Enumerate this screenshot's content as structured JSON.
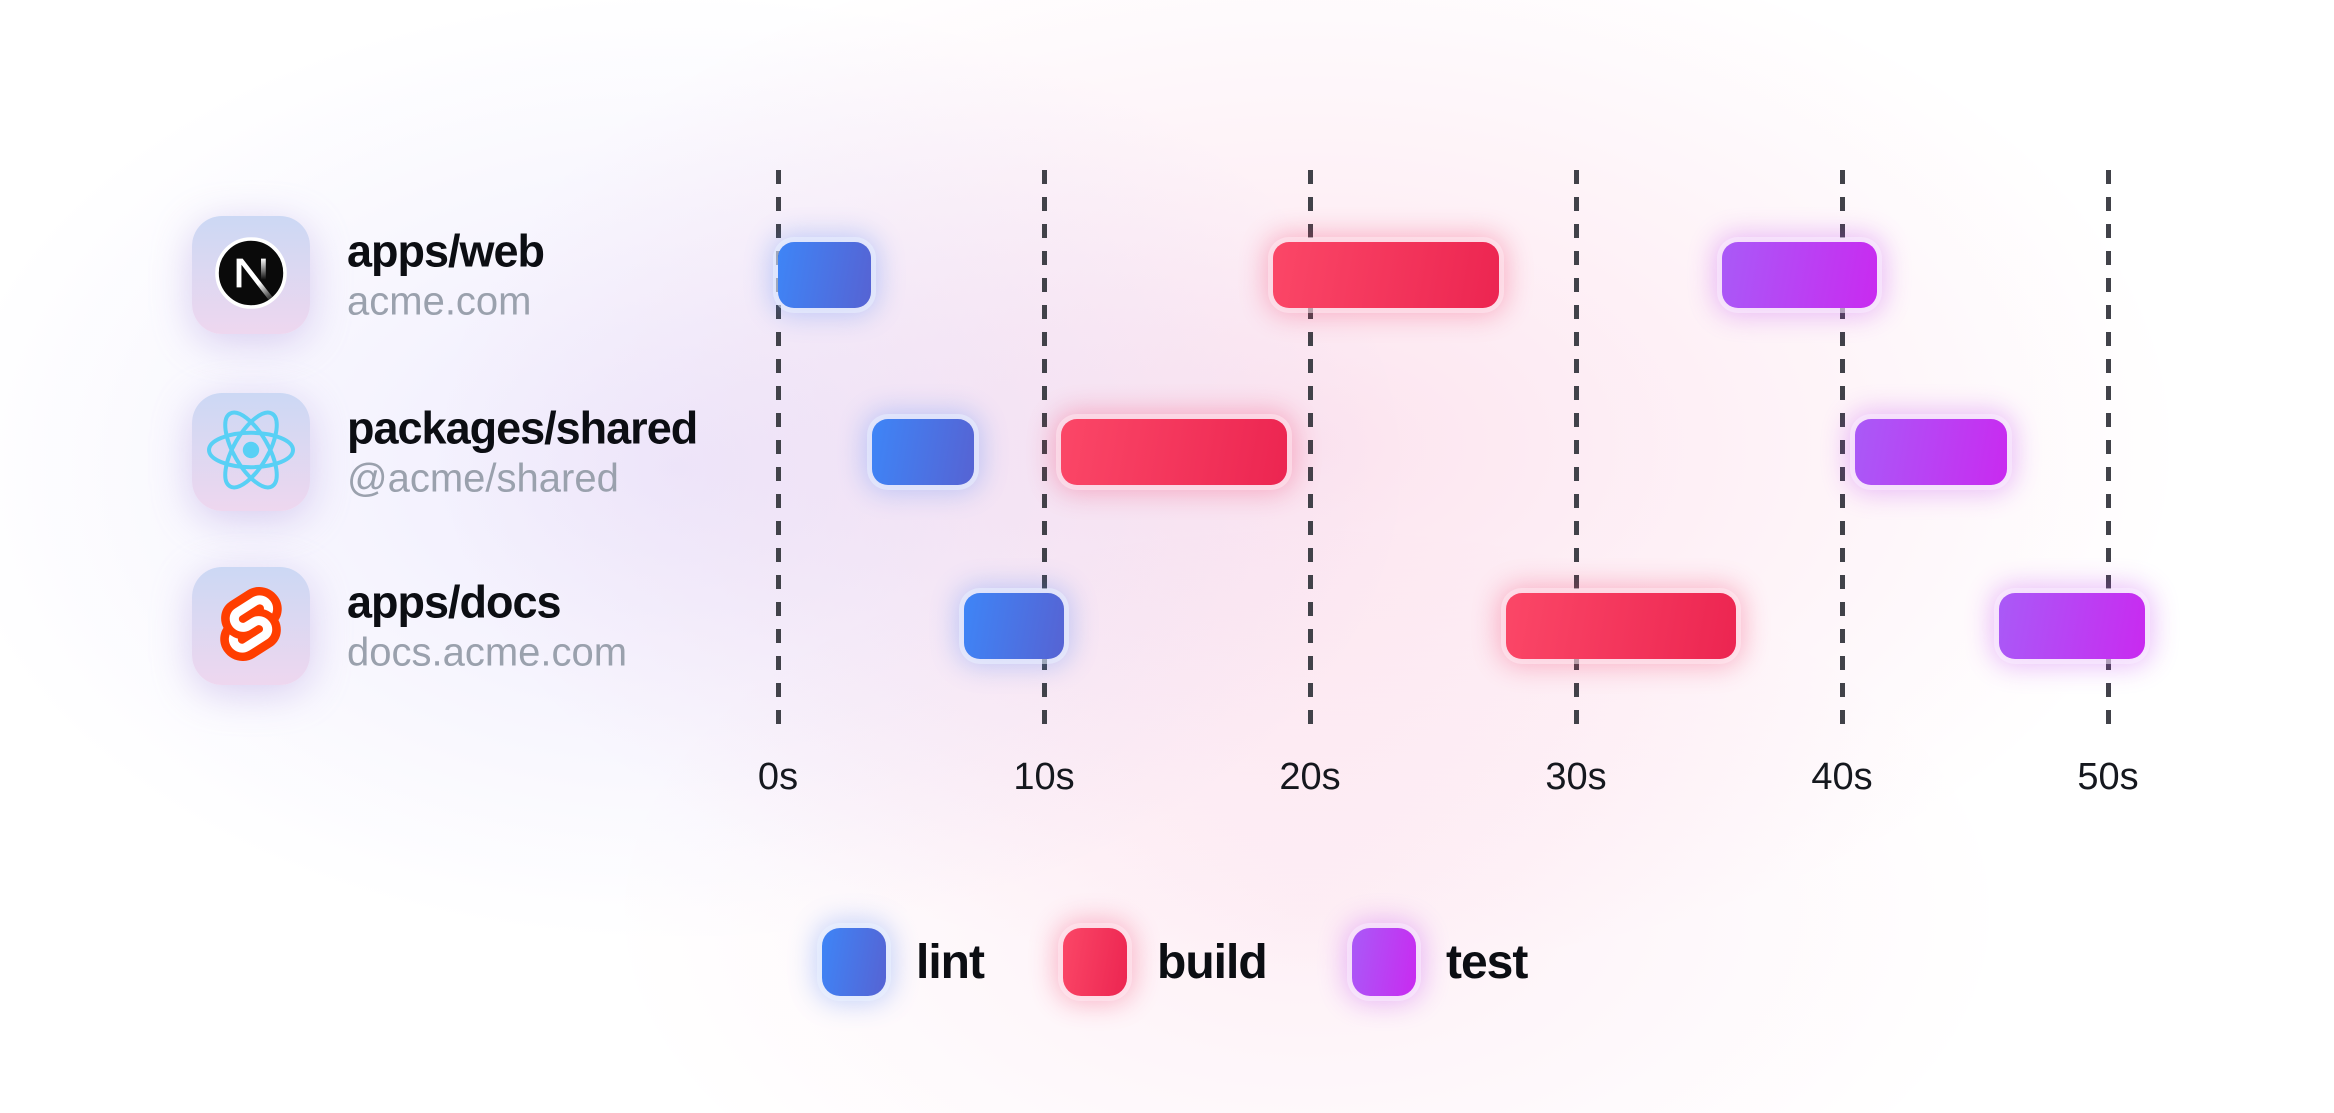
{
  "chart_data": {
    "type": "bar",
    "subtype": "gantt-task-timeline",
    "title": "",
    "time_axis": {
      "unit": "seconds",
      "ticks": [
        "0s",
        "10s",
        "20s",
        "30s",
        "40s",
        "50s"
      ],
      "tick_values": [
        0,
        10,
        20,
        30,
        40,
        50
      ],
      "range": [
        0,
        52
      ],
      "gridlines": "dashed-vertical"
    },
    "legend": [
      {
        "id": "lint",
        "label": "lint",
        "color_start": "#3e85f7",
        "color_end": "#5663d3"
      },
      {
        "id": "build",
        "label": "build",
        "color_start": "#fb4767",
        "color_end": "#ec2551"
      },
      {
        "id": "test",
        "label": "test",
        "color_start": "#a95af7",
        "color_end": "#c92af0"
      }
    ],
    "legend_position": "bottom",
    "rows": [
      {
        "title": "apps/web",
        "subtitle": "acme.com",
        "icon": "nextjs-logo-icon",
        "tasks": [
          {
            "type": "lint",
            "start": 0,
            "end": 3.5
          },
          {
            "type": "build",
            "start": 18.6,
            "end": 27.1
          },
          {
            "type": "test",
            "start": 35.5,
            "end": 41.3
          }
        ]
      },
      {
        "title": "packages/shared",
        "subtitle": "@acme/shared",
        "icon": "react-logo-icon",
        "tasks": [
          {
            "type": "lint",
            "start": 3.55,
            "end": 7.35
          },
          {
            "type": "build",
            "start": 10.65,
            "end": 19.15
          },
          {
            "type": "test",
            "start": 40.5,
            "end": 46.2
          }
        ]
      },
      {
        "title": "apps/docs",
        "subtitle": "docs.acme.com",
        "icon": "svelte-logo-icon",
        "tasks": [
          {
            "type": "lint",
            "start": 7.0,
            "end": 10.75
          },
          {
            "type": "build",
            "start": 27.35,
            "end": 36.0
          },
          {
            "type": "test",
            "start": 45.9,
            "end": 51.4
          }
        ]
      }
    ],
    "colors": {
      "icon_tile_gradient_top": "#ccd8f4",
      "icon_tile_gradient_bottom": "#eed7ef",
      "gridline": "#414249",
      "tick_text": "#15181e",
      "row_title_text": "#0c0e13",
      "row_subtitle_text": "#9aa1ad",
      "react_logo": "#58d0f5",
      "svelte_logo": "#ff3e00",
      "nextjs_logo_bg": "#0a0a0a"
    }
  }
}
